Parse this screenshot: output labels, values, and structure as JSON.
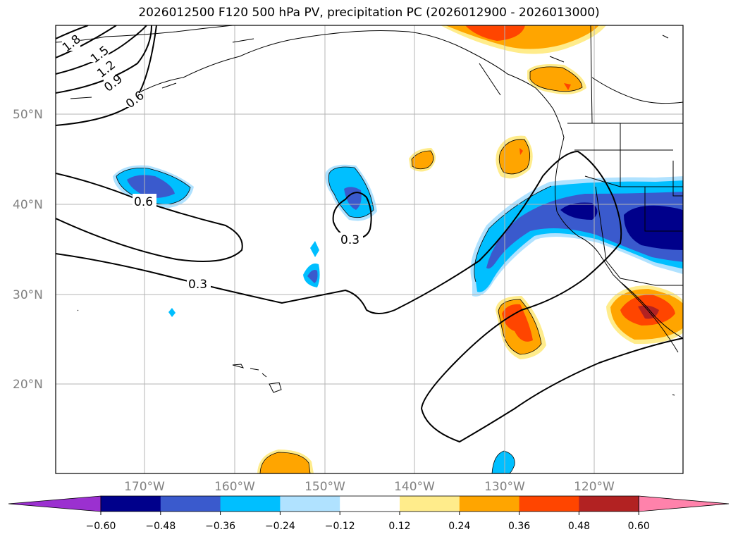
{
  "title": "2026012500 F120 500 hPa PV, precipitation PC (2026012900 - 2026013000)",
  "axes": {
    "lat_labels": [
      "50°N",
      "40°N",
      "30°N",
      "20°N"
    ],
    "lon_labels": [
      "170°W",
      "160°W",
      "150°W",
      "140°W",
      "130°W",
      "120°W"
    ]
  },
  "pv_contour_labels": [
    "1.8",
    "1.5",
    "1.2",
    "0.9",
    "0.6",
    "0.6",
    "0.3",
    "0.3"
  ],
  "colorbar": {
    "ticks": [
      "−0.60",
      "−0.48",
      "−0.36",
      "−0.24",
      "−0.12",
      "0.12",
      "0.24",
      "0.36",
      "0.48",
      "0.60"
    ],
    "colors": [
      "#9b30d0",
      "#00008b",
      "#3a5acd",
      "#00bfff",
      "#b0e2ff",
      "#ffffff",
      "#ffec8b",
      "#ffa500",
      "#ff4500",
      "#b22222",
      "#ff82ab"
    ]
  }
}
